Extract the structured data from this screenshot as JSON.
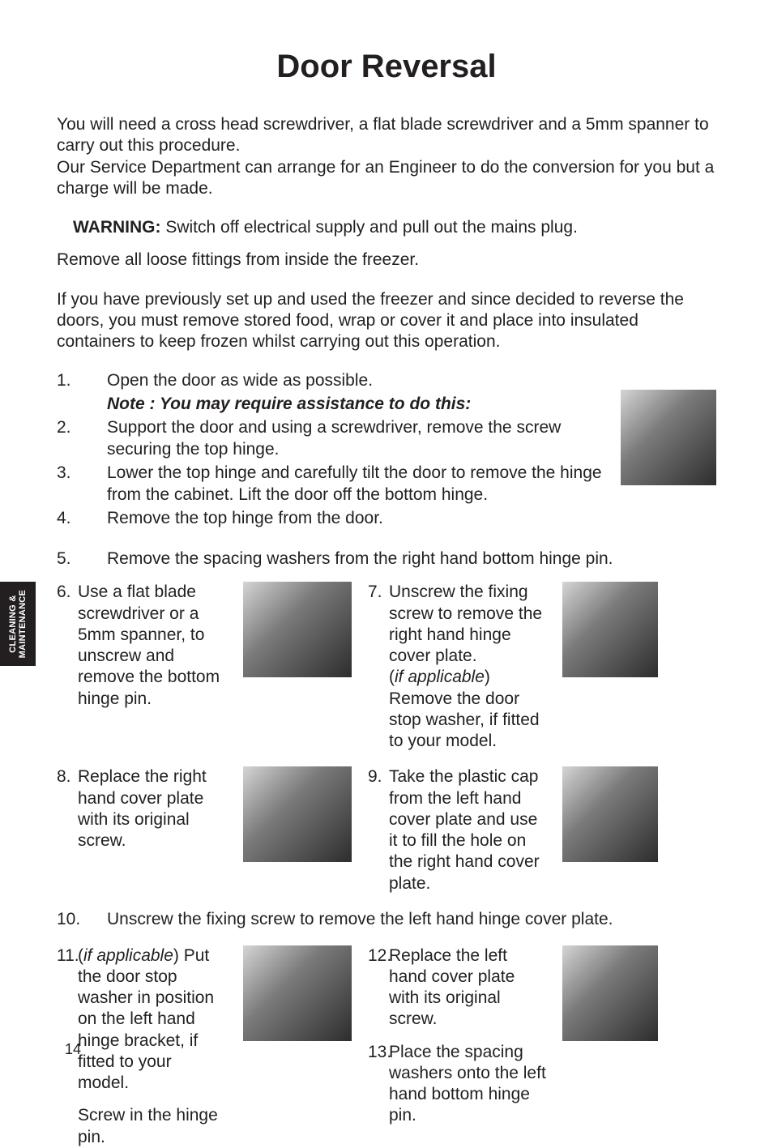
{
  "sideTab": {
    "line1": "CLEANING &",
    "line2": "MAINTENANCE"
  },
  "title": "Door Reversal",
  "intro": "You will need a cross head screwdriver, a flat blade screwdriver and a 5mm spanner to carry out this procedure.\nOur Service Department can arrange for an Engineer to do the conversion for you but a charge will be made.",
  "warning": {
    "label": "WARNING:",
    "text": " Switch off electrical supply and pull out the mains plug."
  },
  "prep1": "Remove all loose fittings from inside the freezer.",
  "prep2": "If you have previously set up and used the freezer and since decided to reverse the doors, you must remove stored food, wrap or cover it and place into insulated containers to keep frozen whilst carrying out this operation.",
  "topSteps": [
    {
      "n": "1.",
      "t": "Open the door as wide as possible."
    },
    {
      "n": "",
      "t": "Note : You may require assistance to do this:",
      "note": true
    },
    {
      "n": "2.",
      "t": "Support the door and using a screwdriver, remove the screw securing the top hinge."
    },
    {
      "n": "3.",
      "t": "Lower the top hinge and carefully tilt the door to remove the hinge from the cabinet.  Lift the door off the bottom hinge."
    },
    {
      "n": "4.",
      "t": "Remove the top hinge from the door."
    }
  ],
  "step5": {
    "n": "5.",
    "t": "Remove the spacing washers from the right hand bottom hinge pin."
  },
  "rowA": {
    "left": {
      "n": "6.",
      "t": "Use a flat blade screwdriver or a 5mm spanner, to unscrew and remove the bottom hinge pin."
    },
    "right": {
      "n": "7.",
      "t1": "Unscrew the fixing screw to remove the right hand hinge cover plate.",
      "t2a": "(",
      "t2i": "if applicable",
      "t2b": ") Remove the door stop washer, if fitted to your model."
    }
  },
  "rowB": {
    "left": {
      "n": "8.",
      "t": "Replace the right hand cover plate with its original screw."
    },
    "right": {
      "n": "9.",
      "t": "Take the plastic cap from the left hand cover plate and use it to fill the hole on the right hand cover plate."
    }
  },
  "step10": {
    "n": "10.",
    "t": "Unscrew the fixing screw to remove the left hand hinge cover plate."
  },
  "rowC": {
    "left": {
      "n": "11.",
      "t1a": "(",
      "t1i": "if applicable",
      "t1b": ") Put the door stop washer in position on the left hand hinge bracket, if fitted to your model.",
      "t2": "Screw in the hinge pin."
    },
    "right1": {
      "n": "12.",
      "t": "Replace the left hand cover plate with its original screw."
    },
    "right2": {
      "n": "13.",
      "t": "Place the spacing washers onto the left hand bottom hinge pin."
    }
  },
  "pageNum": "14",
  "colors": {
    "text": "#231f20",
    "bg": "#ffffff",
    "tabBg": "#231f20",
    "tabText": "#ffffff"
  }
}
